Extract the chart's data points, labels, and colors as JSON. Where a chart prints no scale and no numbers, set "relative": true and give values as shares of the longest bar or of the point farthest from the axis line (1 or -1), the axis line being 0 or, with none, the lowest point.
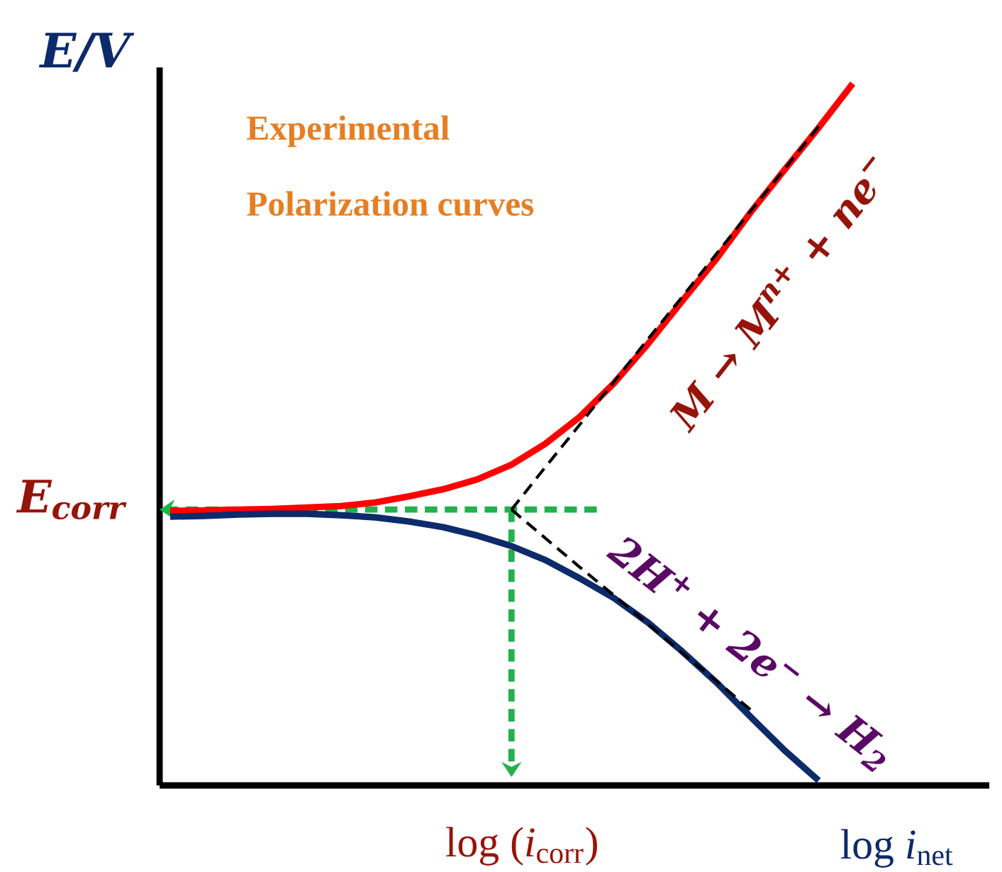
{
  "chart_data": {
    "type": "line",
    "relative": true,
    "ylabel": "*E*/*V*",
    "xlabel": "log *i*$_{net}$",
    "categories": [
      null,
      null,
      null,
      null,
      null,
      null,
      null,
      null,
      null,
      null,
      null,
      null,
      null,
      null,
      null,
      null,
      null,
      null,
      null,
      null,
      null
    ],
    "series": [
      {
        "color": "#ff0000",
        "values": [
          0.391,
          0.392,
          0.393,
          0.394,
          0.396,
          0.398,
          0.403,
          0.412,
          0.422,
          0.436,
          0.457,
          0.487,
          0.525,
          0.573,
          0.629,
          0.69,
          0.75,
          0.816,
          0.877,
          0.937,
          1
        ]
      },
      {
        "color": "#0d2a6b",
        "values": [
          0.383,
          0.384,
          0.386,
          0.387,
          0.387,
          0.385,
          0.382,
          0.376,
          0.368,
          0.356,
          0.341,
          0.321,
          0.295,
          0.267,
          0.232,
          0.191,
          0.147,
          0.098,
          0.05,
          0.007,
          null
        ]
      },
      {
        "color": "#000000",
        "line_style": "dashed",
        "values": [
          null,
          null,
          null,
          null,
          null,
          null,
          null,
          null,
          null,
          null,
          0.393,
          0.454,
          0.514,
          0.575,
          0.636,
          0.696,
          0.757,
          0.818,
          0.878,
          0.939,
          null
        ]
      },
      {
        "color": "#000000",
        "line_style": "dashed",
        "values": [
          null,
          null,
          null,
          null,
          null,
          null,
          null,
          null,
          null,
          null,
          0.393,
          0.352,
          0.311,
          0.271,
          0.23,
          0.189,
          0.149,
          0.108,
          null,
          null,
          null
        ]
      }
    ],
    "ref_lines": [
      {
        "axis": "y",
        "value": 0.393,
        "label": "*E*$_{corr}$",
        "color": "#22b14c",
        "line_style": "dashed"
      }
    ],
    "annotations": [
      "Experimental",
      "Polarization curves",
      "M → M$^{n+}$ + ne$^{−}$",
      "2H$^{+}$ + 2e$^{−}$ → H$_{2}$",
      "log (*i*$_{corr}$)"
    ],
    "marker": "none",
    "line_style": "solid"
  }
}
